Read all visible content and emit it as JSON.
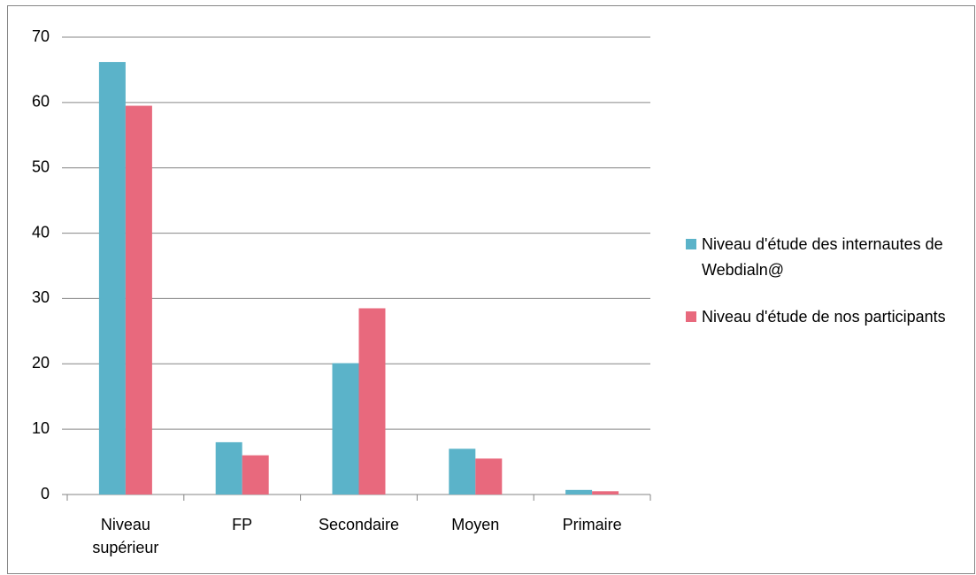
{
  "chart_data": {
    "type": "bar",
    "categories": [
      "Niveau supérieur",
      "FP",
      "Secondaire",
      "Moyen",
      "Primaire"
    ],
    "series": [
      {
        "name": "Niveau d'étude des internautes de Webdialn@",
        "color": "#5bb3c9",
        "values": [
          66.2,
          8,
          20.1,
          7,
          0.7
        ]
      },
      {
        "name": "Niveau d'étude de nos participants",
        "color": "#e8697d",
        "values": [
          59.5,
          6,
          28.5,
          5.5,
          0.5
        ]
      }
    ],
    "ylim": [
      0,
      70
    ],
    "yticks": [
      0,
      10,
      20,
      30,
      40,
      50,
      60,
      70
    ],
    "grid": true,
    "legend": "right"
  }
}
